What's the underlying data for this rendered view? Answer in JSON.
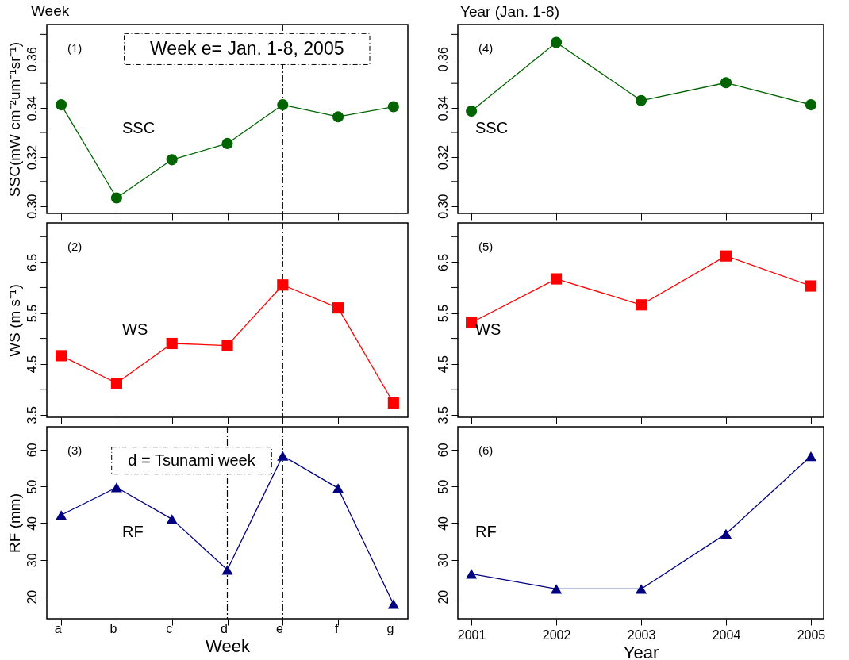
{
  "chart_data": [
    {
      "type": "line",
      "title": "Week",
      "ylabel": "SSC(mW cm⁻²um⁻¹sr⁻¹)",
      "categories": [
        "a",
        "b",
        "c",
        "d",
        "e",
        "f",
        "g"
      ],
      "marker": "circle",
      "grid": false,
      "tick_labels": "y",
      "series": [
        {
          "color": "#006400",
          "values": [
            0.3413,
            0.3033,
            0.3189,
            0.3255,
            0.3413,
            0.3364,
            0.3405
          ]
        }
      ],
      "ylim": [
        0.297,
        0.374
      ],
      "yticks": [
        {
          "value": 0.3,
          "label": "0.30"
        },
        {
          "value": 0.31,
          "label": null
        },
        {
          "value": 0.32,
          "label": "0.32"
        },
        {
          "value": 0.33,
          "label": null
        },
        {
          "value": 0.34,
          "label": "0.34"
        },
        {
          "value": 0.35,
          "label": null
        },
        {
          "value": 0.36,
          "label": "0.36"
        },
        {
          "value": 0.37,
          "label": null
        }
      ],
      "ref_lines": [
        {
          "axis": "x",
          "value": "e",
          "line_style": "dashed",
          "color": "#000000"
        }
      ],
      "annotations": [
        "(1)",
        "SSC",
        {
          "text": "Week e= Jan. 1-8, 2005",
          "x": "e",
          "y": 0.364
        }
      ]
    },
    {
      "type": "line",
      "title": "Year   (Jan. 1-8)",
      "x": [
        2001,
        2002,
        2003,
        2004,
        2005
      ],
      "marker": "circle",
      "grid": false,
      "tick_labels": "y",
      "series": [
        {
          "color": "#006400",
          "values": [
            0.3387,
            0.3667,
            0.343,
            0.3503,
            0.3413
          ]
        }
      ],
      "xlim": [
        2000.84,
        2005.15
      ],
      "xticks": [
        2001,
        2002,
        2003,
        2004,
        2005
      ],
      "ylim": [
        0.297,
        0.374
      ],
      "yticks": [
        {
          "value": 0.3,
          "label": "0.30"
        },
        {
          "value": 0.31,
          "label": null
        },
        {
          "value": 0.32,
          "label": "0.32"
        },
        {
          "value": 0.33,
          "label": null
        },
        {
          "value": 0.34,
          "label": "0.34"
        },
        {
          "value": 0.35,
          "label": null
        },
        {
          "value": 0.36,
          "label": "0.36"
        },
        {
          "value": 0.37,
          "label": null
        }
      ],
      "annotations": [
        "(4)",
        "SSC"
      ]
    },
    {
      "type": "line",
      "ylabel": "WS (m s⁻¹)",
      "categories": [
        "a",
        "b",
        "c",
        "d",
        "e",
        "f",
        "g"
      ],
      "marker": "square",
      "grid": false,
      "tick_labels": "y",
      "series": [
        {
          "color": "#ff0000",
          "values": [
            4.66,
            4.12,
            4.9,
            4.86,
            6.05,
            5.6,
            3.73
          ]
        }
      ],
      "ylim": [
        3.45,
        7.27
      ],
      "yticks": [
        3.5,
        {
          "value": 4,
          "label": null
        },
        4.5,
        {
          "value": 5,
          "label": null
        },
        5.5,
        {
          "value": 6,
          "label": null
        },
        6.5,
        {
          "value": 7,
          "label": null
        }
      ],
      "ref_lines": [
        {
          "axis": "x",
          "value": "e",
          "line_style": "dashed",
          "color": "#000000"
        }
      ],
      "annotations": [
        "(2)",
        "WS"
      ]
    },
    {
      "type": "line",
      "x": [
        2001,
        2002,
        2003,
        2004,
        2005
      ],
      "marker": "square",
      "grid": false,
      "tick_labels": "y",
      "series": [
        {
          "color": "#ff0000",
          "values": [
            5.31,
            6.17,
            5.66,
            6.62,
            6.03
          ]
        }
      ],
      "xlim": [
        2000.84,
        2005.15
      ],
      "xticks": [
        2001,
        2002,
        2003,
        2004,
        2005
      ],
      "ylim": [
        3.45,
        7.27
      ],
      "yticks": [
        3.5,
        {
          "value": 4,
          "label": null
        },
        4.5,
        {
          "value": 5,
          "label": null
        },
        5.5,
        {
          "value": 6,
          "label": null
        },
        6.5,
        {
          "value": 7,
          "label": null
        }
      ],
      "annotations": [
        "(5)",
        "WS"
      ]
    },
    {
      "type": "line",
      "xlabel": "Week",
      "ylabel": "RF  (mm)",
      "categories": [
        "a",
        "b",
        "c",
        "d",
        "e",
        "f",
        "g"
      ],
      "marker": "triangle",
      "grid": false,
      "series": [
        {
          "color": "#000080",
          "values": [
            42.2,
            49.7,
            41.1,
            27.3,
            58.3,
            49.5,
            18.0
          ]
        }
      ],
      "ylim": [
        14,
        66.2
      ],
      "yticks": [
        20,
        30,
        40,
        50,
        60
      ],
      "ref_lines": [
        {
          "axis": "x",
          "value": "d",
          "line_style": "dashed",
          "color": "#000000"
        },
        {
          "axis": "x",
          "value": "e",
          "line_style": "dashed",
          "color": "#000000"
        }
      ],
      "annotations": [
        "(3)",
        "RF",
        {
          "text": "d = Tsunami week",
          "x": "d",
          "y": 57
        }
      ]
    },
    {
      "type": "line",
      "xlabel": "Year",
      "x": [
        2001,
        2002,
        2003,
        2004,
        2005
      ],
      "marker": "triangle",
      "grid": false,
      "series": [
        {
          "color": "#000080",
          "values": [
            26.2,
            22.1,
            22.1,
            37.1,
            58.2
          ]
        }
      ],
      "xlim": [
        2000.84,
        2005.15
      ],
      "xticks": [
        2001,
        2002,
        2003,
        2004,
        2005
      ],
      "ylim": [
        14,
        66.2
      ],
      "yticks": [
        20,
        30,
        40,
        50,
        60
      ],
      "annotations": [
        "(6)",
        "RF"
      ]
    }
  ]
}
